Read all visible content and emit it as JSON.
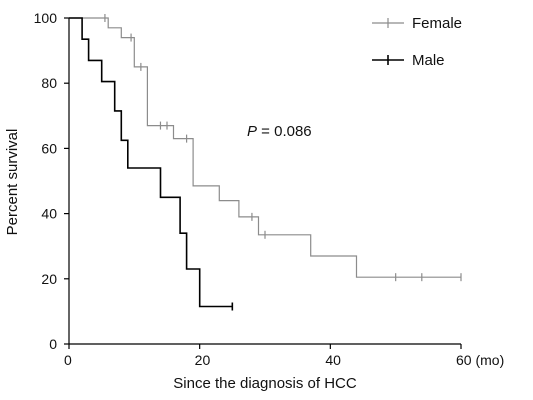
{
  "chart_data": {
    "type": "line",
    "title": "",
    "xlabel": "Since the diagnosis of HCC",
    "ylabel": "Percent survival",
    "xlim": [
      0,
      60
    ],
    "ylim": [
      0,
      100
    ],
    "x_ticks": [
      0,
      20,
      40,
      60
    ],
    "x_tick_labels": [
      "0",
      "20",
      "40",
      "60 (mo)"
    ],
    "y_ticks": [
      0,
      20,
      40,
      60,
      80,
      100
    ],
    "y_tick_labels": [
      "0",
      "20",
      "40",
      "60",
      "80",
      "100"
    ],
    "grid": false,
    "legend_position": "top-right",
    "annotation": {
      "label": "P",
      "text": " = 0.086"
    },
    "series": [
      {
        "name": "Female",
        "color": "#8c8c8c",
        "step_points": [
          [
            0,
            100
          ],
          [
            6,
            100
          ],
          [
            6,
            97
          ],
          [
            8,
            97
          ],
          [
            8,
            94
          ],
          [
            10,
            94
          ],
          [
            10,
            85
          ],
          [
            12,
            85
          ],
          [
            12,
            67
          ],
          [
            16,
            67
          ],
          [
            16,
            63
          ],
          [
            19,
            63
          ],
          [
            19,
            48.5
          ],
          [
            23,
            48.5
          ],
          [
            23,
            44
          ],
          [
            26,
            44
          ],
          [
            26,
            39
          ],
          [
            29,
            39
          ],
          [
            29,
            33.5
          ],
          [
            37,
            33.5
          ],
          [
            37,
            27
          ],
          [
            44,
            27
          ],
          [
            44,
            20.5
          ],
          [
            60,
            20.5
          ]
        ],
        "censor_ticks": [
          [
            5.5,
            100
          ],
          [
            9.5,
            94
          ],
          [
            11,
            85
          ],
          [
            14,
            67
          ],
          [
            15,
            67
          ],
          [
            18,
            63
          ],
          [
            28,
            39
          ],
          [
            30,
            33.5
          ],
          [
            50,
            20.5
          ],
          [
            54,
            20.5
          ],
          [
            60,
            20.5
          ]
        ]
      },
      {
        "name": "Male",
        "color": "#000000",
        "step_points": [
          [
            0,
            100
          ],
          [
            2,
            100
          ],
          [
            2,
            93.5
          ],
          [
            3,
            93.5
          ],
          [
            3,
            87
          ],
          [
            5,
            87
          ],
          [
            5,
            80.5
          ],
          [
            7,
            80.5
          ],
          [
            7,
            71.5
          ],
          [
            8,
            71.5
          ],
          [
            8,
            62.5
          ],
          [
            9,
            62.5
          ],
          [
            9,
            54
          ],
          [
            14,
            54
          ],
          [
            14,
            45
          ],
          [
            17,
            45
          ],
          [
            17,
            34
          ],
          [
            18,
            34
          ],
          [
            18,
            23
          ],
          [
            20,
            23
          ],
          [
            20,
            11.5
          ],
          [
            25,
            11.5
          ]
        ],
        "censor_ticks": [
          [
            25,
            11.5
          ]
        ]
      }
    ]
  }
}
